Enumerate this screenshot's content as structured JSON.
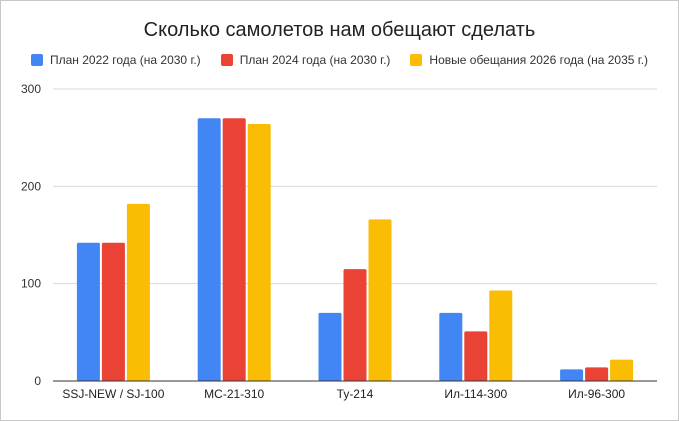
{
  "chart_data": {
    "type": "bar",
    "title": "Сколько самолетов нам обещают сделать",
    "xlabel": "",
    "ylabel": "",
    "ylim": [
      0,
      300
    ],
    "yticks": [
      0,
      100,
      200,
      300
    ],
    "grid": true,
    "legend_position": "top",
    "categories": [
      "SSJ-NEW / SJ-100",
      "МС-21-310",
      "Ту-214",
      "Ил-114-300",
      "Ил-96-300"
    ],
    "series": [
      {
        "name": "План 2022 года (на 2030 г.)",
        "color": "#4285f4",
        "values": [
          142,
          270,
          70,
          70,
          12
        ]
      },
      {
        "name": "План 2024 года (на 2030 г.)",
        "color": "#ea4335",
        "values": [
          142,
          270,
          115,
          51,
          14
        ]
      },
      {
        "name": "Новые обещания 2026 года (на 2035 г.)",
        "color": "#fbbc04",
        "values": [
          182,
          264,
          166,
          93,
          22
        ]
      }
    ]
  }
}
